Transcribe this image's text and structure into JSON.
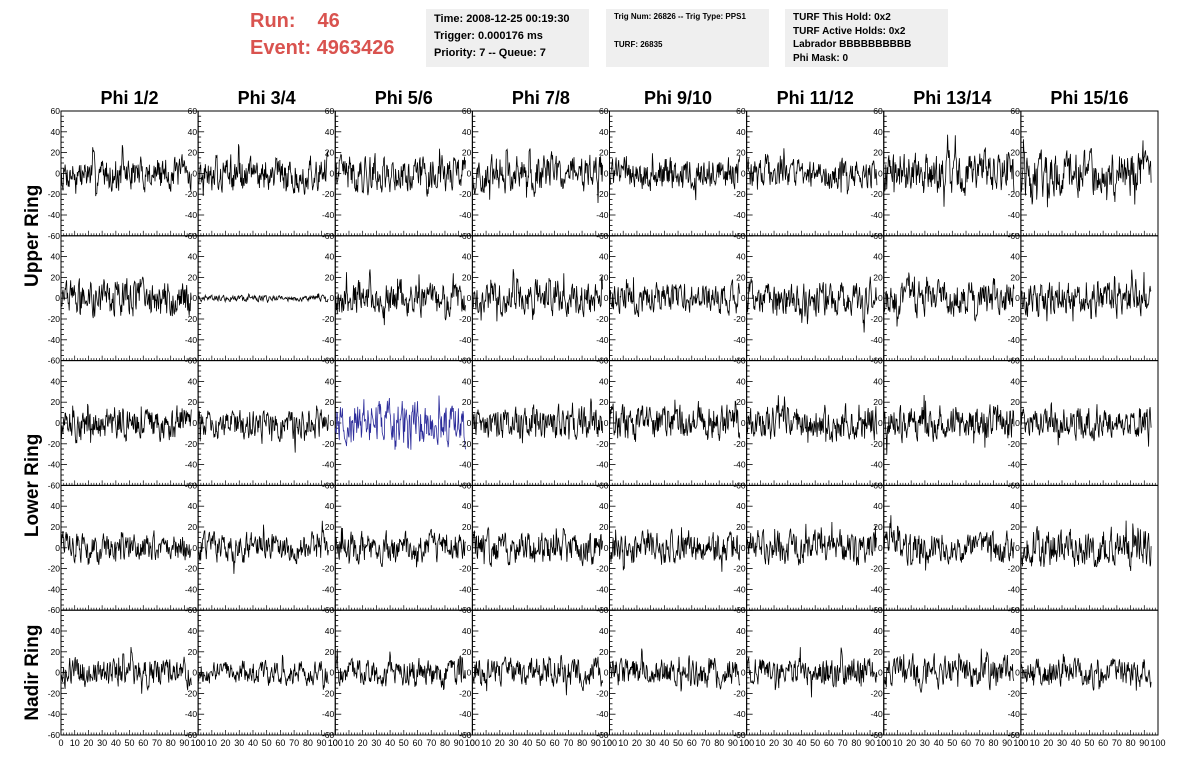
{
  "header": {
    "run_label": "Run:",
    "run_value": "46",
    "event_label": "Event:",
    "event_value": "4963426",
    "time": "Time: 2008-12-25 00:19:30",
    "trigger": "Trigger: 0.000176 ms",
    "priority": "Priority: 7 -- Queue: 7",
    "trig_num": "Trig Num: 26826 -- Trig Type: PPS1",
    "turf": "TURF: 26835",
    "turf_this_hold": "TURF This Hold: 0x2",
    "turf_active_holds": "TURF Active Holds: 0x2",
    "labrador": "Labrador BBBBBBBBBB",
    "phi_mask": "Phi Mask: 0"
  },
  "colors": {
    "run_text": "#d9534f",
    "trace": "#000000",
    "highlight_trace": "#2b2b9a",
    "info_box_bg": "#efefef"
  },
  "chart_data": {
    "type": "line",
    "columns": [
      "Phi 1/2",
      "Phi 3/4",
      "Phi 5/6",
      "Phi 7/8",
      "Phi 9/10",
      "Phi 11/12",
      "Phi 13/14",
      "Phi 15/16"
    ],
    "rows": [
      "Upper Ring",
      "Lower Ring",
      "Nadir Ring"
    ],
    "y_ticks": [
      "-60",
      "-40",
      "-20",
      "0",
      "20",
      "40",
      "60"
    ],
    "x_ticks": [
      "0",
      "10",
      "20",
      "30",
      "40",
      "50",
      "60",
      "70",
      "80",
      "90",
      "100"
    ],
    "xlim": [
      0,
      100
    ],
    "ylim": [
      -60,
      60
    ],
    "n_samples": 256,
    "panels_per_row_group": [
      2,
      2,
      1
    ],
    "panel_amplitudes": [
      [
        16,
        18,
        18,
        18,
        16,
        14,
        20,
        22
      ],
      [
        17,
        3,
        16,
        16,
        15,
        16,
        17,
        17
      ],
      [
        16,
        14,
        20,
        15,
        17,
        16,
        17,
        15
      ],
      [
        14,
        14,
        15,
        16,
        15,
        15,
        15,
        18
      ],
      [
        14,
        11,
        13,
        14,
        14,
        14,
        15,
        14
      ]
    ],
    "highlighted_panel": {
      "row": 2,
      "col": 2
    },
    "highlighted_x_range": [
      0,
      95
    ]
  }
}
